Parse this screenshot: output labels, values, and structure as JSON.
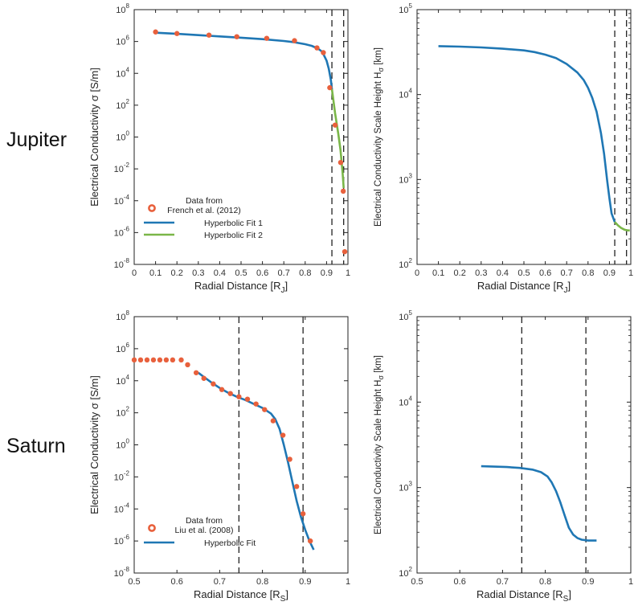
{
  "figure": {
    "row_labels": [
      "Jupiter",
      "Saturn"
    ]
  },
  "chart_data": [
    {
      "id": "jupiter-conductivity",
      "type": "line",
      "row": "Jupiter",
      "xlabel": "Radial Distance [R",
      "xlabel_sub": "J",
      "xlabel_end": "]",
      "ylabel": "Electrical Conductivity σ [S/m]",
      "xlim": [
        0,
        1
      ],
      "ylim_exp": [
        -8,
        8
      ],
      "yscale": "log",
      "xticks": [
        0,
        0.1,
        0.2,
        0.3,
        0.4,
        0.5,
        0.6,
        0.7,
        0.8,
        0.9,
        1
      ],
      "xtick_labels": [
        "0",
        "0.1",
        "0.2",
        "0.3",
        "0.4",
        "0.5",
        "0.6",
        "0.7",
        "0.8",
        "0.9",
        "1"
      ],
      "ytick_exps": [
        -8,
        -6,
        -4,
        -2,
        0,
        2,
        4,
        6,
        8
      ],
      "ytick_labels": [
        "10",
        "10",
        "10",
        "10",
        "10",
        "10",
        "10",
        "10",
        "10"
      ],
      "ytick_sups": [
        "-8",
        "-6",
        "-4",
        "-2",
        "0",
        "2",
        "4",
        "6",
        "8"
      ],
      "vlines": [
        0.925,
        0.98
      ],
      "legend": {
        "position": "bottom-left",
        "entries": [
          "Data from",
          "French et al. (2012)",
          "Hyperbolic Fit 1",
          "Hyperbolic Fit 2"
        ]
      },
      "series": [
        {
          "name": "Hyperbolic Fit 1",
          "kind": "line",
          "color": "#1f77b4",
          "x": [
            0.1,
            0.2,
            0.3,
            0.4,
            0.5,
            0.6,
            0.7,
            0.75,
            0.8,
            0.83,
            0.86,
            0.88,
            0.9,
            0.91,
            0.92,
            0.925
          ],
          "y_exp": [
            6.55,
            6.48,
            6.4,
            6.32,
            6.24,
            6.15,
            6.03,
            5.95,
            5.83,
            5.73,
            5.55,
            5.35,
            4.8,
            4.3,
            3.6,
            3.0
          ]
        },
        {
          "name": "Hyperbolic Fit 2",
          "kind": "line",
          "color": "#7ab648",
          "x": [
            0.925,
            0.94,
            0.955,
            0.965,
            0.975,
            0.98
          ],
          "y_exp": [
            3.0,
            1.5,
            0.2,
            -0.8,
            -2.2,
            -3.2
          ]
        },
        {
          "name": "Data from French et al. (2012)",
          "kind": "scatter",
          "color": "#e8603c",
          "x": [
            0.1,
            0.2,
            0.35,
            0.48,
            0.62,
            0.75,
            0.855,
            0.885,
            0.915,
            0.94,
            0.966,
            0.978,
            0.985
          ],
          "y_exp": [
            6.6,
            6.5,
            6.4,
            6.3,
            6.2,
            6.05,
            5.6,
            5.3,
            3.1,
            0.75,
            -1.6,
            -3.4,
            -7.2
          ]
        }
      ]
    },
    {
      "id": "jupiter-scaleheight",
      "type": "line",
      "row": "Jupiter",
      "xlabel": "Radial Distance [R",
      "xlabel_sub": "J",
      "xlabel_end": "]",
      "ylabel": "Electrical Conductivity Scale Height H",
      "ylabel_sub": "σ",
      "ylabel_end": " [km]",
      "xlim": [
        0,
        1
      ],
      "ylim_exp": [
        2,
        5
      ],
      "yscale": "log",
      "xticks": [
        0,
        0.1,
        0.2,
        0.3,
        0.4,
        0.5,
        0.6,
        0.7,
        0.8,
        0.9,
        1
      ],
      "xtick_labels": [
        "0",
        "0.1",
        "0.2",
        "0.3",
        "0.4",
        "0.5",
        "0.6",
        "0.7",
        "0.8",
        "0.9",
        "1"
      ],
      "ytick_exps": [
        2,
        3,
        4,
        5
      ],
      "ytick_labels": [
        "10",
        "10",
        "10",
        "10"
      ],
      "ytick_sups": [
        "2",
        "3",
        "4",
        "5"
      ],
      "vlines": [
        0.925,
        0.98
      ],
      "series": [
        {
          "name": "Hyperbolic Fit 1",
          "kind": "line",
          "color": "#1f77b4",
          "x": [
            0.1,
            0.2,
            0.3,
            0.4,
            0.5,
            0.55,
            0.6,
            0.65,
            0.7,
            0.75,
            0.78,
            0.8,
            0.82,
            0.84,
            0.86,
            0.875,
            0.89,
            0.9,
            0.91,
            0.925
          ],
          "y_exp": [
            4.57,
            4.565,
            4.555,
            4.54,
            4.52,
            4.5,
            4.47,
            4.43,
            4.36,
            4.26,
            4.17,
            4.08,
            3.96,
            3.8,
            3.55,
            3.3,
            2.98,
            2.78,
            2.6,
            2.5
          ]
        },
        {
          "name": "Hyperbolic Fit 2",
          "kind": "line",
          "color": "#7ab648",
          "x": [
            0.925,
            0.94,
            0.955,
            0.97,
            0.985,
            0.995
          ],
          "y_exp": [
            2.5,
            2.46,
            2.43,
            2.41,
            2.4,
            2.4
          ]
        }
      ]
    },
    {
      "id": "saturn-conductivity",
      "type": "line",
      "row": "Saturn",
      "xlabel": "Radial Distance [R",
      "xlabel_sub": "S",
      "xlabel_end": "]",
      "ylabel": "Electrical Conductivity σ [S/m]",
      "xlim": [
        0.5,
        1
      ],
      "ylim_exp": [
        -8,
        8
      ],
      "yscale": "log",
      "xticks": [
        0.5,
        0.6,
        0.7,
        0.8,
        0.9,
        1
      ],
      "xtick_labels": [
        "0.5",
        "0.6",
        "0.7",
        "0.8",
        "0.9",
        "1"
      ],
      "ytick_exps": [
        -8,
        -6,
        -4,
        -2,
        0,
        2,
        4,
        6,
        8
      ],
      "ytick_labels": [
        "10",
        "10",
        "10",
        "10",
        "10",
        "10",
        "10",
        "10",
        "10"
      ],
      "ytick_sups": [
        "-8",
        "-6",
        "-4",
        "-2",
        "0",
        "2",
        "4",
        "6",
        "8"
      ],
      "vlines": [
        0.745,
        0.895
      ],
      "legend": {
        "position": "bottom-left",
        "entries": [
          "Data from",
          "Liu et al. (2008)",
          "Hyperbolic Fit"
        ]
      },
      "series": [
        {
          "name": "Hyperbolic Fit",
          "kind": "line",
          "color": "#1f77b4",
          "x": [
            0.65,
            0.66,
            0.68,
            0.7,
            0.72,
            0.74,
            0.76,
            0.78,
            0.8,
            0.82,
            0.83,
            0.84,
            0.85,
            0.86,
            0.87,
            0.88,
            0.89,
            0.9,
            0.91,
            0.92
          ],
          "y_exp": [
            4.5,
            4.3,
            3.9,
            3.55,
            3.25,
            3.0,
            2.8,
            2.55,
            2.3,
            1.95,
            1.6,
            1.0,
            0.0,
            -1.1,
            -2.3,
            -3.5,
            -4.5,
            -5.3,
            -6.0,
            -6.55
          ]
        },
        {
          "name": "Data from Liu et al. (2008)",
          "kind": "scatter",
          "color": "#e8603c",
          "x": [
            0.5,
            0.515,
            0.53,
            0.545,
            0.56,
            0.575,
            0.59,
            0.61,
            0.625,
            0.645,
            0.663,
            0.685,
            0.705,
            0.725,
            0.745,
            0.765,
            0.785,
            0.805,
            0.825,
            0.848,
            0.864,
            0.88,
            0.895,
            0.912
          ],
          "y_exp": [
            5.3,
            5.3,
            5.3,
            5.3,
            5.3,
            5.3,
            5.3,
            5.3,
            5.0,
            4.5,
            4.15,
            3.8,
            3.45,
            3.2,
            3.0,
            2.85,
            2.55,
            2.2,
            1.5,
            0.6,
            -0.9,
            -2.6,
            -4.3,
            -6.0
          ]
        }
      ]
    },
    {
      "id": "saturn-scaleheight",
      "type": "line",
      "row": "Saturn",
      "xlabel": "Radial Distance [R",
      "xlabel_sub": "S",
      "xlabel_end": "]",
      "ylabel": "Electrical Conductivity Scale Height H",
      "ylabel_sub": "σ",
      "ylabel_end": " [km]",
      "xlim": [
        0.5,
        1
      ],
      "ylim_exp": [
        2,
        5
      ],
      "yscale": "log",
      "xticks": [
        0.5,
        0.6,
        0.7,
        0.8,
        0.9,
        1
      ],
      "xtick_labels": [
        "0.5",
        "0.6",
        "0.7",
        "0.8",
        "0.9",
        "1"
      ],
      "ytick_exps": [
        2,
        3,
        4,
        5
      ],
      "ytick_labels": [
        "10",
        "10",
        "10",
        "10"
      ],
      "ytick_sups": [
        "2",
        "3",
        "4",
        "5"
      ],
      "vlines": [
        0.745,
        0.895
      ],
      "series": [
        {
          "name": "Hyperbolic Fit",
          "kind": "line",
          "color": "#1f77b4",
          "x": [
            0.65,
            0.68,
            0.71,
            0.74,
            0.77,
            0.79,
            0.805,
            0.815,
            0.825,
            0.835,
            0.845,
            0.855,
            0.865,
            0.875,
            0.885,
            0.9,
            0.92
          ],
          "y_exp": [
            3.25,
            3.245,
            3.24,
            3.23,
            3.21,
            3.18,
            3.13,
            3.06,
            2.96,
            2.83,
            2.68,
            2.53,
            2.45,
            2.41,
            2.39,
            2.38,
            2.38
          ]
        }
      ]
    }
  ]
}
